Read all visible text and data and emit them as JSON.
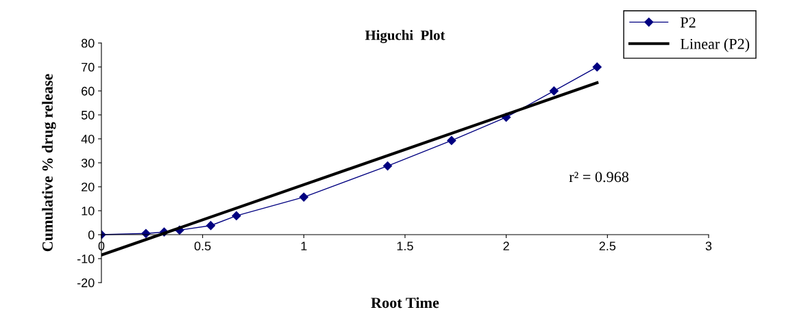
{
  "chart_data": {
    "type": "line",
    "title": "Higuchi  Plot",
    "xlabel": "Root Time",
    "ylabel": "Cumulative % drug release",
    "xlim": [
      0,
      3
    ],
    "ylim": [
      -20,
      80
    ],
    "xticks": [
      0,
      0.5,
      1,
      1.5,
      2,
      2.5,
      3
    ],
    "yticks": [
      -20,
      -10,
      0,
      10,
      20,
      30,
      40,
      50,
      60,
      70,
      80
    ],
    "series": [
      {
        "name": "P2",
        "color": "#000080",
        "marker": "diamond",
        "x": [
          0,
          0.22,
          0.31,
          0.386,
          0.54,
          0.667,
          1.0,
          1.414,
          1.73,
          2.0,
          2.236,
          2.449
        ],
        "values": [
          0,
          0.5,
          1.1,
          1.9,
          3.8,
          7.9,
          15.7,
          28.7,
          39.3,
          49,
          60,
          70
        ]
      },
      {
        "name": "Linear (P2)",
        "color": "#000000",
        "marker": "none",
        "x": [
          0,
          2.449
        ],
        "values": [
          -8.5,
          63.4
        ]
      }
    ],
    "annotations": [
      "r² = 0.968"
    ],
    "legend": "top right",
    "grid": false
  }
}
